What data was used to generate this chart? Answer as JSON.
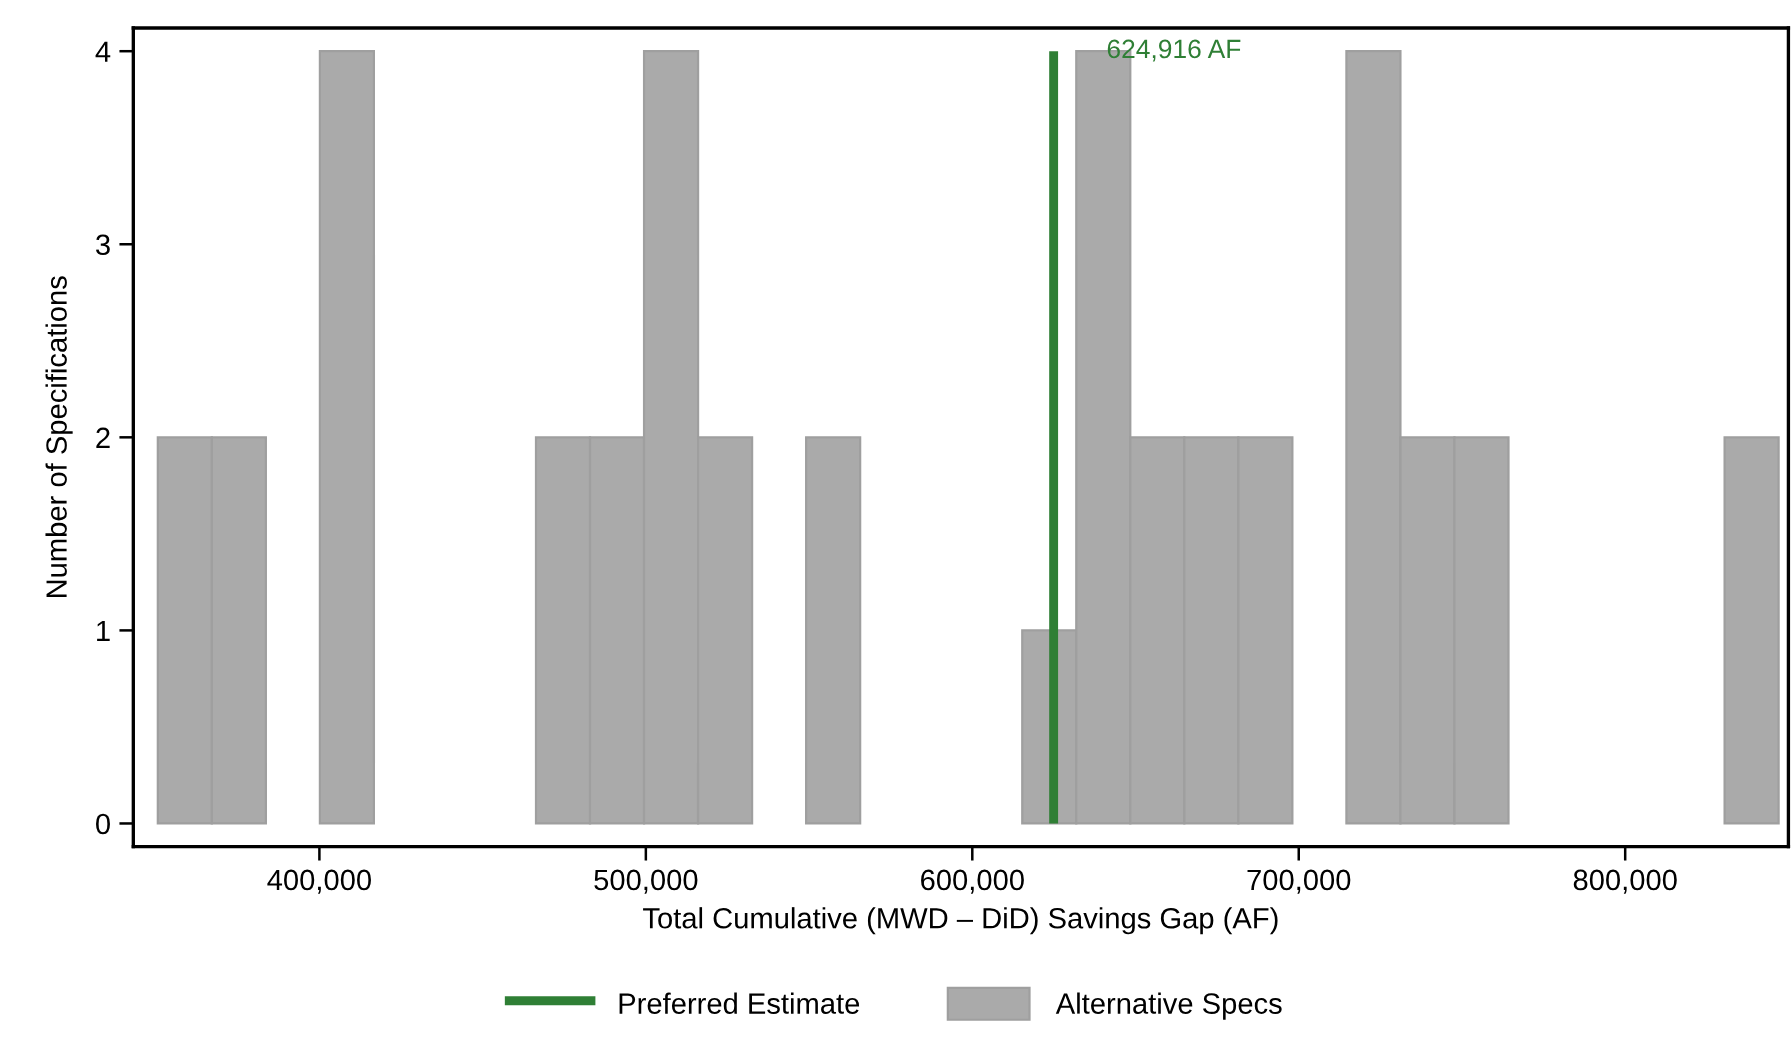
{
  "chart_data": {
    "type": "histogram",
    "xlabel": "Total Cumulative (MWD – DiD) Savings Gap (AF)",
    "ylabel": "Number of Specifications",
    "bins": [
      350500,
      367050,
      383600,
      400150,
      416700,
      433250,
      449800,
      466350,
      482900,
      499450,
      516000,
      532550,
      549100,
      565650,
      582200,
      598750,
      615300,
      631850,
      648400,
      664950,
      681500,
      698050,
      714600,
      731150,
      747700,
      764250,
      780800,
      797350,
      813900,
      830450,
      847000
    ],
    "series": [
      {
        "name": "Alternative Specs",
        "color": "#aaaaaa",
        "values": [
          2,
          2,
          0,
          4,
          0,
          0,
          0,
          2,
          2,
          4,
          2,
          0,
          2,
          0,
          0,
          0,
          1,
          4,
          2,
          2,
          2,
          0,
          4,
          2,
          2,
          0,
          0,
          0,
          0,
          2
        ]
      }
    ],
    "ref_lines": [
      {
        "axis": "x",
        "value": 624916,
        "label": "Preferred Estimate",
        "color": "#2f7f35",
        "line_style": "solid"
      }
    ],
    "annotations": [
      {
        "text": "624,916 AF",
        "x": 624916,
        "y": 4
      }
    ],
    "xlim": [
      343000,
      850000
    ],
    "xticks": [
      {
        "value": 400000,
        "label": "400,000"
      },
      {
        "value": 500000,
        "label": "500,000"
      },
      {
        "value": 600000,
        "label": "600,000"
      },
      {
        "value": 700000,
        "label": "700,000"
      },
      {
        "value": 800000,
        "label": "800,000"
      }
    ],
    "ylim": [
      -0.12,
      4.12
    ],
    "yticks": [
      0,
      1,
      2,
      3,
      4
    ],
    "grid": false,
    "legend": "bottom"
  }
}
